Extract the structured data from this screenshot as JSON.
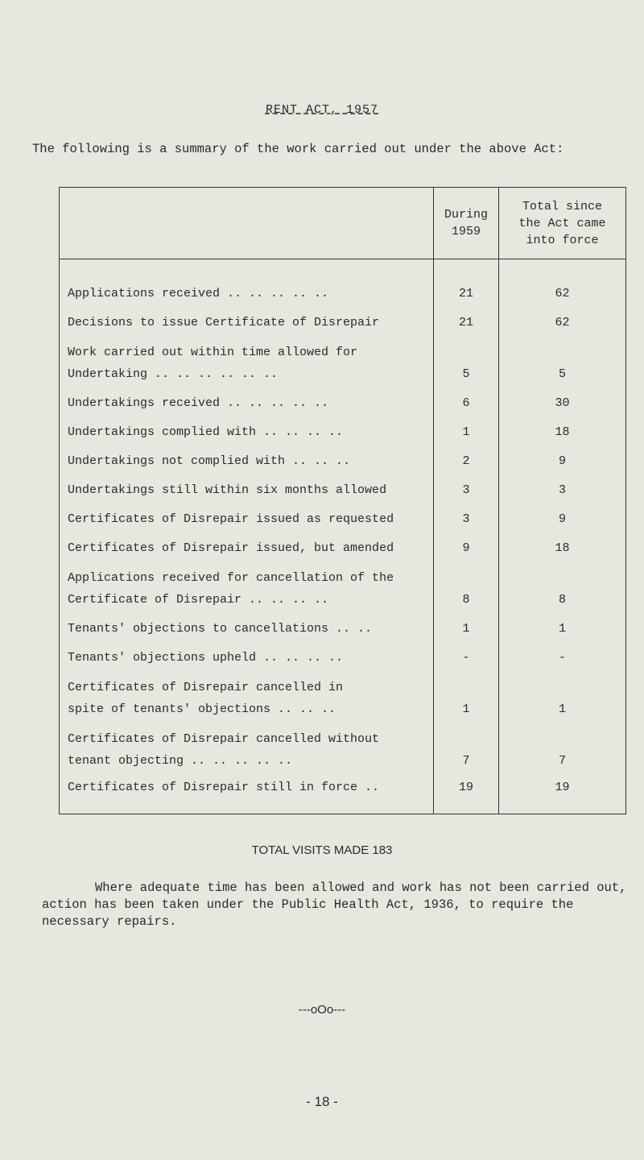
{
  "title": "RENT ACT, 1957",
  "intro": "The following is a summary of the work carried out under the above Act:",
  "table": {
    "headers": [
      "",
      "During 1959",
      "Total since the Act came into force"
    ],
    "rows": [
      {
        "label": "Applications received .. .. .. .. ..",
        "during": "21",
        "total": "62"
      },
      {
        "label": "Decisions to issue Certificate of Disrepair",
        "during": "21",
        "total": "62"
      },
      {
        "label": "Work carried out within time allowed for\nUndertaking .. .. .. .. .. ..",
        "during": "5",
        "total": "5"
      },
      {
        "label": "Undertakings received .. .. .. .. ..",
        "during": "6",
        "total": "30"
      },
      {
        "label": "Undertakings complied with .. .. .. ..",
        "during": "1",
        "total": "18"
      },
      {
        "label": "Undertakings not complied with .. .. ..",
        "during": "2",
        "total": "9"
      },
      {
        "label": "Undertakings still within six months allowed",
        "during": "3",
        "total": "3"
      },
      {
        "label": "Certificates of Disrepair issued as requested",
        "during": "3",
        "total": "9"
      },
      {
        "label": "Certificates of Disrepair issued, but amended",
        "during": "9",
        "total": "18"
      },
      {
        "label": "Applications received for cancellation of the\nCertificate of Disrepair .. .. .. ..",
        "during": "8",
        "total": "8"
      },
      {
        "label": "Tenants' objections to cancellations .. ..",
        "during": "1",
        "total": "1"
      },
      {
        "label": "Tenants' objections upheld .. .. .. ..",
        "during": "-",
        "total": "-"
      },
      {
        "label": "Certificates of Disrepair cancelled in\nspite of tenants' objections .. .. ..",
        "during": "1",
        "total": "1"
      },
      {
        "label": "Certificates of Disrepair cancelled without\ntenant objecting .. .. .. .. ..",
        "during": "7",
        "total": "7"
      },
      {
        "label": "Certificates of Disrepair still in force ..",
        "during": "19",
        "total": "19"
      }
    ]
  },
  "total_visits": "TOTAL VISITS MADE 183",
  "paragraph": "Where adequate time has been allowed and work has not been carried out, action has been taken under the Public Health Act, 1936, to require the necessary repairs.",
  "separator": "---oOo---",
  "page_number": "- 18 -"
}
